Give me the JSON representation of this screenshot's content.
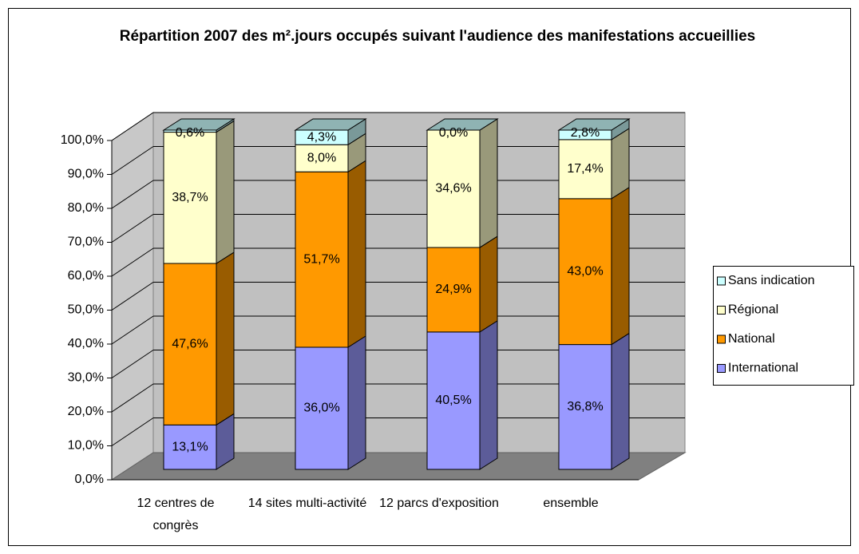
{
  "chart_data": {
    "type": "bar3d_stacked",
    "title": "Répartition 2007 des m².jours occupés suivant l'audience des manifestations accueillies",
    "categories": [
      "12 centres de congrès",
      "14 sites multi-activité",
      "12 parcs d'exposition",
      "ensemble"
    ],
    "series": [
      {
        "name": "International",
        "color": "#9999ff",
        "values": [
          13.1,
          36.0,
          40.5,
          36.8
        ],
        "value_labels": [
          "13,1%",
          "36,0%",
          "40,5%",
          "36,8%"
        ]
      },
      {
        "name": "National",
        "color": "#ff9900",
        "values": [
          47.6,
          51.7,
          24.9,
          43.0
        ],
        "value_labels": [
          "47,6%",
          "51,7%",
          "24,9%",
          "43,0%"
        ]
      },
      {
        "name": "Régional",
        "color": "#ffffcc",
        "values": [
          38.7,
          8.0,
          34.6,
          17.4
        ],
        "value_labels": [
          "38,7%",
          "8,0%",
          "34,6%",
          "17,4%"
        ]
      },
      {
        "name": "Sans indication",
        "color": "#ccffff",
        "values": [
          0.6,
          4.3,
          0.0,
          2.8
        ],
        "value_labels": [
          "0,6%",
          "4,3%",
          "0,0%",
          "2,8%"
        ]
      }
    ],
    "ylim": [
      0,
      100
    ],
    "yticks": [
      {
        "value": 0,
        "label": "0,0%"
      },
      {
        "value": 10,
        "label": "10,0%"
      },
      {
        "value": 20,
        "label": "20,0%"
      },
      {
        "value": 30,
        "label": "30,0%"
      },
      {
        "value": 40,
        "label": "40,0%"
      },
      {
        "value": 50,
        "label": "50,0%"
      },
      {
        "value": 60,
        "label": "60,0%"
      },
      {
        "value": 70,
        "label": "70,0%"
      },
      {
        "value": 80,
        "label": "80,0%"
      },
      {
        "value": 90,
        "label": "90,0%"
      },
      {
        "value": 100,
        "label": "100,0%"
      }
    ],
    "grid": true,
    "legend": "right"
  }
}
